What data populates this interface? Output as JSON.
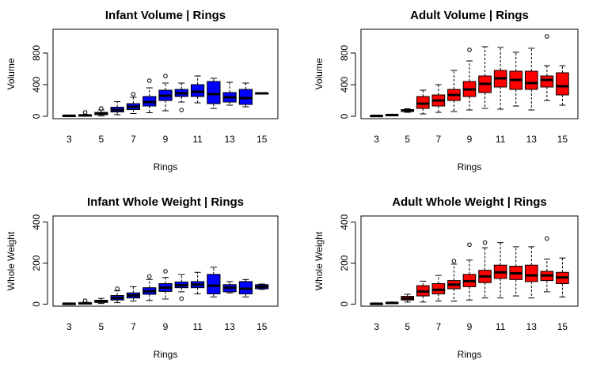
{
  "chart_data": [
    {
      "type": "box",
      "title": "Infant Volume | Rings",
      "xlabel": "Rings",
      "ylabel": "Volume",
      "color": "#0000FF",
      "xlim": [
        2,
        16
      ],
      "ylim": [
        -30,
        1100
      ],
      "x_ticks": [
        3,
        5,
        7,
        9,
        11,
        13,
        15
      ],
      "y_ticks": [
        0,
        400,
        800
      ],
      "boxes": [
        {
          "ring": 3,
          "lw": 2,
          "q1": 4,
          "median": 7,
          "q3": 10,
          "uw": 14,
          "outliers": []
        },
        {
          "ring": 4,
          "lw": 3,
          "q1": 8,
          "median": 11,
          "q3": 16,
          "uw": 25,
          "outliers": [
            50
          ]
        },
        {
          "ring": 5,
          "lw": 6,
          "q1": 20,
          "median": 32,
          "q3": 50,
          "uw": 80,
          "outliers": [
            100
          ]
        },
        {
          "ring": 6,
          "lw": 20,
          "q1": 55,
          "median": 80,
          "q3": 115,
          "uw": 185,
          "outliers": []
        },
        {
          "ring": 7,
          "lw": 35,
          "q1": 85,
          "median": 120,
          "q3": 160,
          "uw": 240,
          "outliers": [
            280
          ]
        },
        {
          "ring": 8,
          "lw": 45,
          "q1": 130,
          "median": 180,
          "q3": 250,
          "uw": 360,
          "outliers": [
            450
          ]
        },
        {
          "ring": 9,
          "lw": 70,
          "q1": 200,
          "median": 260,
          "q3": 330,
          "uw": 420,
          "outliers": [
            510
          ]
        },
        {
          "ring": 10,
          "lw": 180,
          "q1": 250,
          "median": 290,
          "q3": 340,
          "uw": 420,
          "outliers": [
            80
          ]
        },
        {
          "ring": 11,
          "lw": 170,
          "q1": 250,
          "median": 310,
          "q3": 400,
          "uw": 510,
          "outliers": []
        },
        {
          "ring": 12,
          "lw": 100,
          "q1": 160,
          "median": 280,
          "q3": 440,
          "uw": 480,
          "outliers": []
        },
        {
          "ring": 13,
          "lw": 140,
          "q1": 180,
          "median": 240,
          "q3": 300,
          "uw": 430,
          "outliers": []
        },
        {
          "ring": 14,
          "lw": 120,
          "q1": 150,
          "median": 230,
          "q3": 340,
          "uw": 420,
          "outliers": []
        },
        {
          "ring": 15,
          "lw": 285,
          "q1": 285,
          "median": 290,
          "q3": 295,
          "uw": 295,
          "outliers": []
        }
      ]
    },
    {
      "type": "box",
      "title": "Adult Volume | Rings",
      "xlabel": "Rings",
      "ylabel": "Volume",
      "color": "#FF0000",
      "xlim": [
        2,
        16
      ],
      "ylim": [
        -30,
        1100
      ],
      "x_ticks": [
        3,
        5,
        7,
        9,
        11,
        13,
        15
      ],
      "y_ticks": [
        0,
        400,
        800
      ],
      "boxes": [
        {
          "ring": 3,
          "lw": 2,
          "q1": 4,
          "median": 6,
          "q3": 8,
          "uw": 10,
          "outliers": []
        },
        {
          "ring": 4,
          "lw": 8,
          "q1": 12,
          "median": 16,
          "q3": 20,
          "uw": 25,
          "outliers": []
        },
        {
          "ring": 5,
          "lw": 50,
          "q1": 60,
          "median": 70,
          "q3": 85,
          "uw": 95,
          "outliers": []
        },
        {
          "ring": 6,
          "lw": 30,
          "q1": 100,
          "median": 160,
          "q3": 250,
          "uw": 330,
          "outliers": []
        },
        {
          "ring": 7,
          "lw": 50,
          "q1": 130,
          "median": 200,
          "q3": 270,
          "uw": 400,
          "outliers": []
        },
        {
          "ring": 8,
          "lw": 60,
          "q1": 200,
          "median": 270,
          "q3": 340,
          "uw": 580,
          "outliers": []
        },
        {
          "ring": 9,
          "lw": 80,
          "q1": 250,
          "median": 340,
          "q3": 440,
          "uw": 700,
          "outliers": [
            840
          ]
        },
        {
          "ring": 10,
          "lw": 100,
          "q1": 300,
          "median": 410,
          "q3": 510,
          "uw": 880,
          "outliers": []
        },
        {
          "ring": 11,
          "lw": 90,
          "q1": 370,
          "median": 480,
          "q3": 580,
          "uw": 870,
          "outliers": []
        },
        {
          "ring": 12,
          "lw": 130,
          "q1": 340,
          "median": 460,
          "q3": 570,
          "uw": 810,
          "outliers": []
        },
        {
          "ring": 13,
          "lw": 80,
          "q1": 340,
          "median": 420,
          "q3": 570,
          "uw": 860,
          "outliers": []
        },
        {
          "ring": 14,
          "lw": 200,
          "q1": 370,
          "median": 460,
          "q3": 510,
          "uw": 640,
          "outliers": [
            1010
          ]
        },
        {
          "ring": 15,
          "lw": 140,
          "q1": 270,
          "median": 380,
          "q3": 550,
          "uw": 640,
          "outliers": []
        }
      ]
    },
    {
      "type": "box",
      "title": "Infant Whole Weight | Rings",
      "xlabel": "Rings",
      "ylabel": "Whole Weight",
      "color": "#0000FF",
      "xlim": [
        2,
        16
      ],
      "ylim": [
        -10,
        430
      ],
      "x_ticks": [
        3,
        5,
        7,
        9,
        11,
        13,
        15
      ],
      "y_ticks": [
        0,
        200,
        400
      ],
      "boxes": [
        {
          "ring": 3,
          "lw": 1,
          "q1": 1,
          "median": 2,
          "q3": 3,
          "uw": 4,
          "outliers": []
        },
        {
          "ring": 4,
          "lw": 2,
          "q1": 3,
          "median": 4,
          "q3": 6,
          "uw": 9,
          "outliers": [
            17
          ]
        },
        {
          "ring": 5,
          "lw": 3,
          "q1": 8,
          "median": 13,
          "q3": 19,
          "uw": 28,
          "outliers": []
        },
        {
          "ring": 6,
          "lw": 7,
          "q1": 20,
          "median": 30,
          "q3": 42,
          "uw": 65,
          "outliers": [
            75
          ]
        },
        {
          "ring": 7,
          "lw": 15,
          "q1": 30,
          "median": 42,
          "q3": 55,
          "uw": 85,
          "outliers": []
        },
        {
          "ring": 8,
          "lw": 18,
          "q1": 48,
          "median": 63,
          "q3": 80,
          "uw": 120,
          "outliers": [
            135
          ]
        },
        {
          "ring": 9,
          "lw": 25,
          "q1": 62,
          "median": 80,
          "q3": 100,
          "uw": 130,
          "outliers": [
            160
          ]
        },
        {
          "ring": 10,
          "lw": 60,
          "q1": 80,
          "median": 92,
          "q3": 108,
          "uw": 145,
          "outliers": [
            27
          ]
        },
        {
          "ring": 11,
          "lw": 50,
          "q1": 80,
          "median": 95,
          "q3": 110,
          "uw": 155,
          "outliers": []
        },
        {
          "ring": 12,
          "lw": 35,
          "q1": 50,
          "median": 90,
          "q3": 145,
          "uw": 180,
          "outliers": []
        },
        {
          "ring": 13,
          "lw": 55,
          "q1": 60,
          "median": 80,
          "q3": 95,
          "uw": 110,
          "outliers": []
        },
        {
          "ring": 14,
          "lw": 35,
          "q1": 50,
          "median": 75,
          "q3": 110,
          "uw": 120,
          "outliers": []
        },
        {
          "ring": 15,
          "lw": 72,
          "q1": 75,
          "median": 85,
          "q3": 95,
          "uw": 98,
          "outliers": []
        }
      ]
    },
    {
      "type": "box",
      "title": "Adult Whole Weight | Rings",
      "xlabel": "Rings",
      "ylabel": "Whole Weight",
      "color": "#FF0000",
      "xlim": [
        2,
        16
      ],
      "ylim": [
        -10,
        430
      ],
      "x_ticks": [
        3,
        5,
        7,
        9,
        11,
        13,
        15
      ],
      "y_ticks": [
        0,
        200,
        400
      ],
      "boxes": [
        {
          "ring": 3,
          "lw": 1,
          "q1": 1,
          "median": 2,
          "q3": 3,
          "uw": 4,
          "outliers": []
        },
        {
          "ring": 4,
          "lw": 3,
          "q1": 4,
          "median": 6,
          "q3": 8,
          "uw": 10,
          "outliers": []
        },
        {
          "ring": 5,
          "lw": 10,
          "q1": 20,
          "median": 28,
          "q3": 38,
          "uw": 48,
          "outliers": []
        },
        {
          "ring": 6,
          "lw": 10,
          "q1": 40,
          "median": 62,
          "q3": 90,
          "uw": 112,
          "outliers": []
        },
        {
          "ring": 7,
          "lw": 15,
          "q1": 50,
          "median": 70,
          "q3": 100,
          "uw": 140,
          "outliers": []
        },
        {
          "ring": 8,
          "lw": 15,
          "q1": 75,
          "median": 95,
          "q3": 115,
          "uw": 195,
          "outliers": [
            210
          ]
        },
        {
          "ring": 9,
          "lw": 20,
          "q1": 85,
          "median": 112,
          "q3": 145,
          "uw": 215,
          "outliers": [
            290
          ]
        },
        {
          "ring": 10,
          "lw": 30,
          "q1": 105,
          "median": 135,
          "q3": 165,
          "uw": 275,
          "outliers": [
            300
          ]
        },
        {
          "ring": 11,
          "lw": 30,
          "q1": 125,
          "median": 155,
          "q3": 190,
          "uw": 300,
          "outliers": []
        },
        {
          "ring": 12,
          "lw": 40,
          "q1": 120,
          "median": 150,
          "q3": 185,
          "uw": 280,
          "outliers": []
        },
        {
          "ring": 13,
          "lw": 30,
          "q1": 110,
          "median": 140,
          "q3": 190,
          "uw": 280,
          "outliers": []
        },
        {
          "ring": 14,
          "lw": 60,
          "q1": 115,
          "median": 140,
          "q3": 160,
          "uw": 220,
          "outliers": [
            320
          ]
        },
        {
          "ring": 15,
          "lw": 35,
          "q1": 100,
          "median": 130,
          "q3": 155,
          "uw": 225,
          "outliers": []
        }
      ]
    }
  ]
}
